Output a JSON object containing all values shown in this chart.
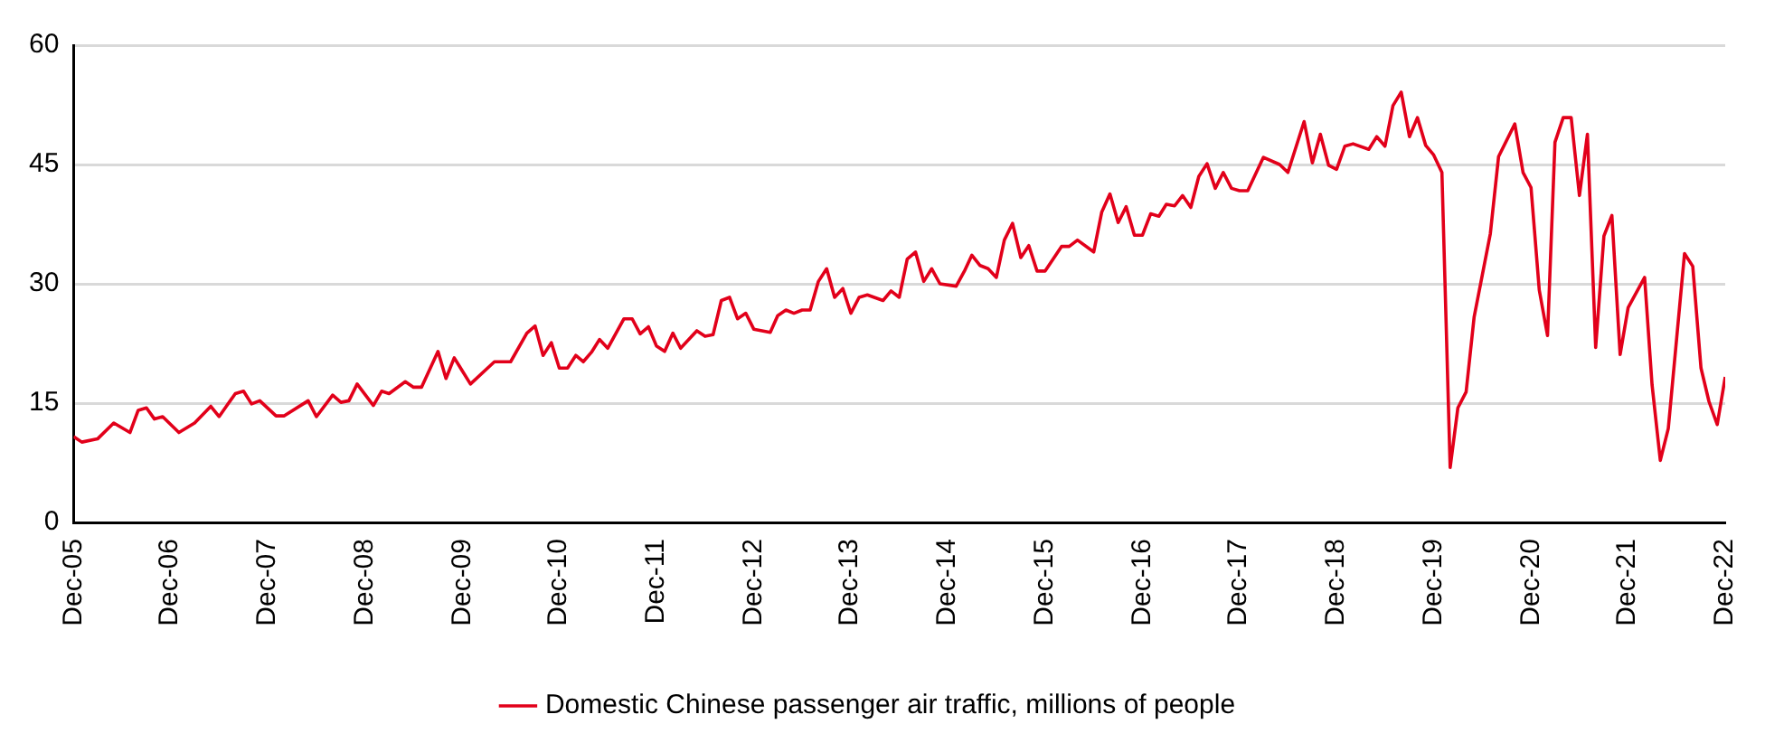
{
  "chart_data": {
    "type": "line",
    "x": [
      "2005-12",
      "2006-01",
      "2006-03",
      "2006-05",
      "2006-07",
      "2006-08",
      "2006-09",
      "2006-10",
      "2006-11",
      "2007-01",
      "2007-03",
      "2007-05",
      "2007-06",
      "2007-08",
      "2007-09",
      "2007-10",
      "2007-11",
      "2008-01",
      "2008-02",
      "2008-05",
      "2008-06",
      "2008-08",
      "2008-09",
      "2008-10",
      "2008-11",
      "2009-01",
      "2009-02",
      "2009-03",
      "2009-05",
      "2009-06",
      "2009-07",
      "2009-09",
      "2009-10",
      "2009-11",
      "2010-01",
      "2010-04",
      "2010-06",
      "2010-08",
      "2010-09",
      "2010-10",
      "2010-11",
      "2010-12",
      "2011-01",
      "2011-02",
      "2011-03",
      "2011-04",
      "2011-05",
      "2011-06",
      "2011-08",
      "2011-09",
      "2011-10",
      "2011-11",
      "2011-12",
      "2012-01",
      "2012-02",
      "2012-03",
      "2012-05",
      "2012-06",
      "2012-07",
      "2012-08",
      "2012-09",
      "2012-10",
      "2012-11",
      "2012-12",
      "2013-02",
      "2013-03",
      "2013-04",
      "2013-05",
      "2013-06",
      "2013-07",
      "2013-08",
      "2013-09",
      "2013-10",
      "2013-11",
      "2013-12",
      "2014-01",
      "2014-02",
      "2014-04",
      "2014-05",
      "2014-06",
      "2014-07",
      "2014-08",
      "2014-09",
      "2014-10",
      "2014-11",
      "2015-01",
      "2015-02",
      "2015-03",
      "2015-04",
      "2015-05",
      "2015-06",
      "2015-07",
      "2015-08",
      "2015-09",
      "2015-10",
      "2015-11",
      "2015-12",
      "2016-02",
      "2016-03",
      "2016-04",
      "2016-06",
      "2016-07",
      "2016-08",
      "2016-09",
      "2016-10",
      "2016-11",
      "2016-12",
      "2017-01",
      "2017-02",
      "2017-03",
      "2017-04",
      "2017-05",
      "2017-06",
      "2017-07",
      "2017-08",
      "2017-09",
      "2017-10",
      "2017-11",
      "2017-12",
      "2018-01",
      "2018-03",
      "2018-05",
      "2018-06",
      "2018-08",
      "2018-09",
      "2018-10",
      "2018-11",
      "2018-12",
      "2019-01",
      "2019-02",
      "2019-04",
      "2019-05",
      "2019-06",
      "2019-07",
      "2019-08",
      "2019-09",
      "2019-10",
      "2019-11",
      "2019-12",
      "2020-01",
      "2020-02",
      "2020-03",
      "2020-04",
      "2020-05",
      "2020-07",
      "2020-08",
      "2020-10",
      "2020-11",
      "2020-12",
      "2021-01",
      "2021-02",
      "2021-03",
      "2021-04",
      "2021-05",
      "2021-06",
      "2021-07",
      "2021-08",
      "2021-09",
      "2021-10",
      "2021-11",
      "2021-12",
      "2022-02",
      "2022-03",
      "2022-04",
      "2022-05",
      "2022-07",
      "2022-08",
      "2022-09",
      "2022-10",
      "2022-11",
      "2022-12"
    ],
    "series": [
      {
        "name": "Domestic Chinese passenger air traffic, millions of people",
        "color": "#e2001a",
        "values": [
          10.8,
          10.1,
          10.5,
          12.5,
          11.3,
          14.1,
          14.4,
          13.0,
          13.3,
          11.3,
          12.5,
          14.6,
          13.3,
          16.2,
          16.5,
          14.9,
          15.3,
          13.4,
          13.4,
          15.3,
          13.3,
          16.0,
          15.1,
          15.3,
          17.4,
          14.7,
          16.5,
          16.2,
          17.7,
          17.0,
          17.0,
          21.5,
          18.1,
          20.7,
          17.4,
          20.2,
          20.2,
          23.8,
          24.7,
          21.0,
          22.6,
          19.4,
          19.4,
          21.0,
          20.2,
          21.4,
          23.0,
          21.9,
          25.6,
          25.6,
          23.7,
          24.6,
          22.2,
          21.5,
          23.8,
          21.9,
          24.1,
          23.4,
          23.6,
          27.9,
          28.3,
          25.6,
          26.3,
          24.3,
          23.9,
          26.0,
          26.7,
          26.3,
          26.7,
          26.7,
          30.3,
          31.9,
          28.3,
          29.4,
          26.3,
          28.3,
          28.6,
          27.9,
          29.1,
          28.3,
          33.1,
          34.0,
          30.3,
          31.9,
          30.0,
          29.7,
          31.6,
          33.6,
          32.3,
          31.9,
          30.8,
          35.5,
          37.6,
          33.3,
          34.8,
          31.6,
          31.6,
          34.7,
          34.7,
          35.5,
          34.0,
          39.0,
          41.3,
          37.7,
          39.7,
          36.1,
          36.1,
          38.8,
          38.5,
          40.0,
          39.8,
          41.1,
          39.6,
          43.5,
          45.1,
          42.0,
          44.0,
          42.0,
          41.7,
          41.7,
          45.9,
          45.0,
          44.0,
          50.4,
          45.2,
          48.8,
          44.9,
          44.4,
          47.3,
          47.6,
          46.9,
          48.5,
          47.3,
          52.4,
          54.1,
          48.5,
          50.9,
          47.4,
          46.2,
          44.0,
          6.9,
          14.4,
          16.4,
          25.8,
          36.3,
          46.0,
          50.1,
          44.0,
          42.1,
          29.2,
          23.5,
          47.8,
          50.9,
          50.9,
          41.1,
          48.8,
          22.0,
          36.0,
          38.6,
          21.1,
          27.0,
          30.8,
          17.3,
          7.8,
          11.8,
          33.8,
          32.2,
          19.4,
          15.2,
          12.3,
          18.3
        ]
      }
    ],
    "xlim": [
      "2005-12",
      "2022-12"
    ],
    "xticks": [
      {
        "value": "2005-12",
        "label": "Dec-05"
      },
      {
        "value": "2006-12",
        "label": "Dec-06"
      },
      {
        "value": "2007-12",
        "label": "Dec-07"
      },
      {
        "value": "2008-12",
        "label": "Dec-08"
      },
      {
        "value": "2009-12",
        "label": "Dec-09"
      },
      {
        "value": "2010-12",
        "label": "Dec-10"
      },
      {
        "value": "2011-12",
        "label": "Dec-11"
      },
      {
        "value": "2012-12",
        "label": "Dec-12"
      },
      {
        "value": "2013-12",
        "label": "Dec-13"
      },
      {
        "value": "2014-12",
        "label": "Dec-14"
      },
      {
        "value": "2015-12",
        "label": "Dec-15"
      },
      {
        "value": "2016-12",
        "label": "Dec-16"
      },
      {
        "value": "2017-12",
        "label": "Dec-17"
      },
      {
        "value": "2018-12",
        "label": "Dec-18"
      },
      {
        "value": "2019-12",
        "label": "Dec-19"
      },
      {
        "value": "2020-12",
        "label": "Dec-20"
      },
      {
        "value": "2021-12",
        "label": "Dec-21"
      },
      {
        "value": "2022-12",
        "label": "Dec-22"
      }
    ],
    "ylim": [
      0,
      60
    ],
    "yticks": [
      0,
      15,
      30,
      45,
      60
    ],
    "grid": "y",
    "legend": "bottom",
    "marker": "none",
    "line_style": "solid"
  }
}
